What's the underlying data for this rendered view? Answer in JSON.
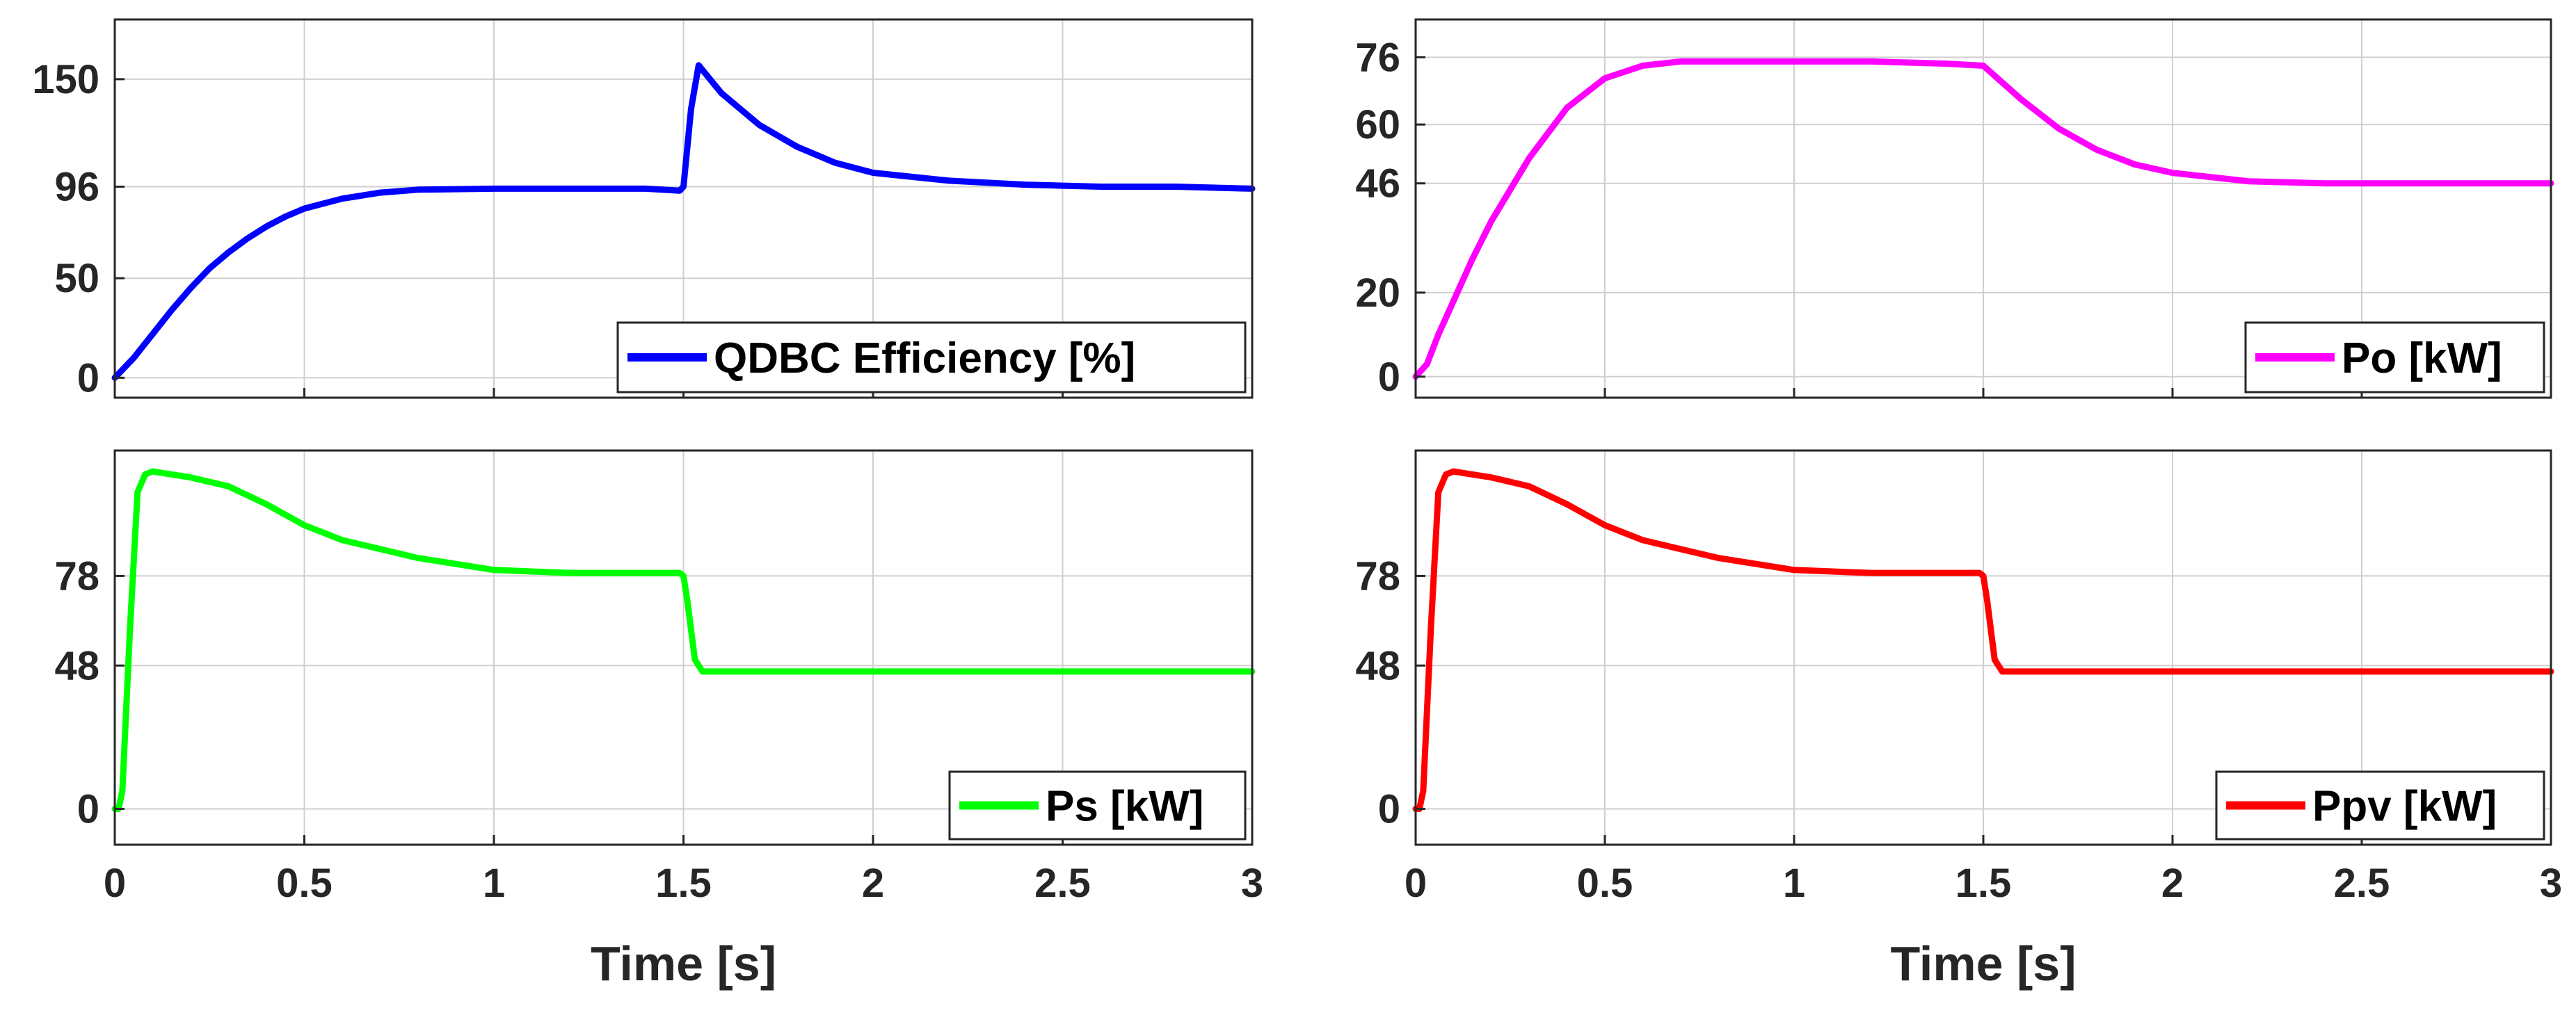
{
  "chart_data": [
    {
      "type": "line",
      "id": "efficiency",
      "series": [
        {
          "name": "QDBC Efficiency [%]",
          "color": "#0000ff",
          "x": [
            0,
            0.05,
            0.1,
            0.15,
            0.2,
            0.25,
            0.3,
            0.35,
            0.4,
            0.45,
            0.5,
            0.6,
            0.7,
            0.8,
            1.0,
            1.2,
            1.4,
            1.49,
            1.5,
            1.52,
            1.54,
            1.6,
            1.7,
            1.8,
            1.9,
            2.0,
            2.2,
            2.4,
            2.6,
            2.8,
            3.0
          ],
          "y": [
            0,
            10,
            22,
            34,
            45,
            55,
            63,
            70,
            76,
            81,
            85,
            90,
            93,
            94.5,
            95,
            95,
            95,
            94,
            96,
            135,
            157,
            143,
            127,
            116,
            108,
            103,
            99,
            97,
            96,
            96,
            95
          ]
        }
      ],
      "xlim": [
        0,
        3
      ],
      "ylim": [
        -10,
        180
      ],
      "yticks": [
        0,
        50,
        96,
        150
      ],
      "xticks": [
        0,
        0.5,
        1,
        1.5,
        2,
        2.5,
        3
      ],
      "xlabel": "",
      "legend_position": "bottom-right"
    },
    {
      "type": "line",
      "id": "po",
      "series": [
        {
          "name": "Po [kW]",
          "color": "#ff00ff",
          "x": [
            0,
            0.03,
            0.06,
            0.1,
            0.15,
            0.2,
            0.3,
            0.4,
            0.5,
            0.6,
            0.7,
            0.8,
            1.0,
            1.2,
            1.4,
            1.5,
            1.6,
            1.7,
            1.8,
            1.9,
            2.0,
            2.2,
            2.4,
            2.6,
            2.8,
            3.0
          ],
          "y": [
            0,
            3,
            10,
            18,
            28,
            37,
            52,
            64,
            71,
            74,
            75,
            75,
            75,
            75,
            74.5,
            74,
            66,
            59,
            54,
            50.5,
            48.5,
            46.5,
            46,
            46,
            46,
            46
          ]
        }
      ],
      "xlim": [
        0,
        3
      ],
      "ylim": [
        -5,
        85
      ],
      "yticks": [
        0,
        20,
        46,
        60,
        76
      ],
      "xticks": [
        0,
        0.5,
        1,
        1.5,
        2,
        2.5,
        3
      ],
      "xlabel": "",
      "legend_position": "bottom-right"
    },
    {
      "type": "line",
      "id": "ps",
      "series": [
        {
          "name": "Ps [kW]",
          "color": "#00ff00",
          "x": [
            0,
            0.01,
            0.02,
            0.04,
            0.06,
            0.08,
            0.1,
            0.15,
            0.2,
            0.3,
            0.4,
            0.5,
            0.6,
            0.8,
            1.0,
            1.2,
            1.4,
            1.49,
            1.5,
            1.51,
            1.53,
            1.55,
            1.6,
            2.0,
            2.5,
            3.0
          ],
          "y": [
            0,
            0,
            6,
            60,
            106,
            112,
            113,
            112,
            111,
            108,
            102,
            95,
            90,
            84,
            80,
            79,
            79,
            79,
            78,
            70,
            50,
            46,
            46,
            46,
            46,
            46
          ]
        }
      ],
      "xlim": [
        0,
        3
      ],
      "ylim": [
        -12,
        120
      ],
      "yticks": [
        0,
        48,
        78
      ],
      "xticks": [
        0,
        0.5,
        1,
        1.5,
        2,
        2.5,
        3
      ],
      "xlabel": "Time [s]",
      "legend_position": "bottom-right"
    },
    {
      "type": "line",
      "id": "ppv",
      "series": [
        {
          "name": "Ppv [kW]",
          "color": "#ff0000",
          "x": [
            0,
            0.01,
            0.02,
            0.04,
            0.06,
            0.08,
            0.1,
            0.15,
            0.2,
            0.3,
            0.4,
            0.5,
            0.6,
            0.8,
            1.0,
            1.2,
            1.4,
            1.49,
            1.5,
            1.51,
            1.53,
            1.55,
            1.6,
            2.0,
            2.5,
            3.0
          ],
          "y": [
            0,
            0,
            6,
            60,
            106,
            112,
            113,
            112,
            111,
            108,
            102,
            95,
            90,
            84,
            80,
            79,
            79,
            79,
            78,
            70,
            50,
            46,
            46,
            46,
            46,
            46
          ]
        }
      ],
      "xlim": [
        0,
        3
      ],
      "ylim": [
        -12,
        120
      ],
      "yticks": [
        0,
        48,
        78
      ],
      "xticks": [
        0,
        0.5,
        1,
        1.5,
        2,
        2.5,
        3
      ],
      "xlabel": "Time [s]",
      "legend_position": "bottom-right"
    }
  ]
}
